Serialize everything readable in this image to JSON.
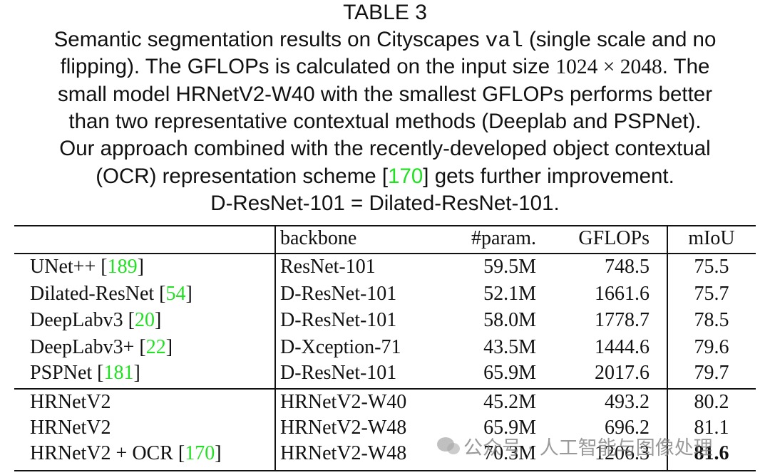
{
  "title": "TABLE 3",
  "caption": [
    [
      "Semantic segmentation results on Cityscapes ",
      "val",
      " (single scale and no"
    ],
    [
      "flipping). The GFLOPs is calculated on the input size ",
      "1024 × 2048",
      ". The"
    ],
    [
      "small model HRNetV2-W40 with the smallest GFLOPs performs better"
    ],
    [
      "than two representative contextual methods (Deeplab and PSPNet)."
    ],
    [
      "Our approach combined with the recently-developed object contextual"
    ],
    [
      "(OCR) representation scheme [",
      "170",
      "] gets further improvement."
    ],
    [
      "D-ResNet-101 = Dilated-ResNet-101."
    ]
  ],
  "table": {
    "header": [
      "backbone",
      "#param.",
      "GFLOPs",
      "mIoU"
    ],
    "groups": [
      [
        {
          "method": "UNet++",
          "ref": "189",
          "backbone": "ResNet-101",
          "params": "59.5M",
          "gflops": 748.5,
          "miou": 75.5
        },
        {
          "method": "Dilated-ResNet",
          "ref": "54",
          "backbone": "D-ResNet-101",
          "params": "52.1M",
          "gflops": 1661.6,
          "miou": 75.7
        },
        {
          "method": "DeepLabv3",
          "ref": "20",
          "backbone": "D-ResNet-101",
          "params": "58.0M",
          "gflops": 1778.7,
          "miou": 78.5
        },
        {
          "method": "DeepLabv3+",
          "ref": "22",
          "backbone": "D-Xception-71",
          "params": "43.5M",
          "gflops": 1444.6,
          "miou": 79.6
        },
        {
          "method": "PSPNet",
          "ref": "181",
          "backbone": "D-ResNet-101",
          "params": "65.9M",
          "gflops": 2017.6,
          "miou": 79.7
        }
      ],
      [
        {
          "method": "HRNetV2",
          "backbone": "HRNetV2-W40",
          "params": "45.2M",
          "gflops": 493.2,
          "miou": 80.2
        },
        {
          "method": "HRNetV2",
          "backbone": "HRNetV2-W48",
          "params": "65.9M",
          "gflops": 696.2,
          "miou": 81.1
        },
        {
          "method": "HRNetV2 + OCR",
          "ref": "170",
          "backbone": "HRNetV2-W48",
          "params": "70.3M",
          "gflops": 1206.3,
          "miou": 81.6,
          "bold": true
        }
      ]
    ]
  },
  "watermark": "公众号 · 人工智能与图像处理"
}
